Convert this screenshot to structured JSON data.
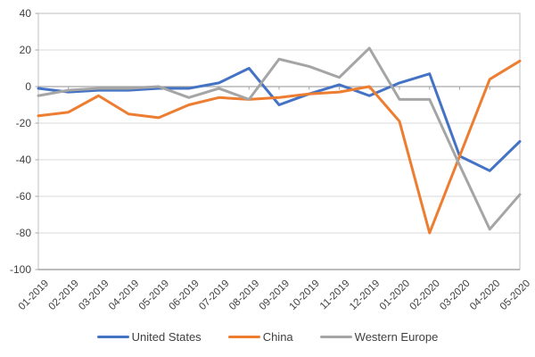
{
  "chart_data": {
    "type": "line",
    "title": "",
    "xlabel": "",
    "ylabel": "",
    "categories": [
      "01-2019",
      "02-2019",
      "03-2019",
      "04-2019",
      "05-2019",
      "06-2019",
      "07-2019",
      "08-2019",
      "09-2019",
      "10-2019",
      "11-2019",
      "12-2019",
      "01-2020",
      "02-2020",
      "03-2020",
      "04-2020",
      "05-2020"
    ],
    "series": [
      {
        "name": "United States",
        "color": "#4472C4",
        "values": [
          -1,
          -3,
          -2,
          -2,
          -1,
          -1,
          2,
          10,
          -10,
          -4,
          1,
          -5,
          2,
          7,
          -38,
          -46,
          -30
        ]
      },
      {
        "name": "China",
        "color": "#ED7D31",
        "values": [
          -16,
          -14,
          -5,
          -15,
          -17,
          -10,
          -6,
          -7,
          -6,
          -4,
          -3,
          0,
          -19,
          -80,
          -38,
          4,
          14
        ]
      },
      {
        "name": "Western Europe",
        "color": "#A5A5A5",
        "values": [
          -5,
          -2,
          -1,
          -1,
          0,
          -6,
          -1,
          -7,
          15,
          11,
          5,
          21,
          -7,
          -7,
          -43,
          -78,
          -59
        ]
      }
    ],
    "ylim": [
      -100,
      40
    ],
    "yticks": [
      40,
      20,
      0,
      -20,
      -40,
      -60,
      -80,
      -100
    ],
    "grid": true,
    "legend_position": "bottom",
    "colors": {
      "grid": "#D9D9D9",
      "axis": "#A6A6A6",
      "text": "#404040"
    }
  }
}
